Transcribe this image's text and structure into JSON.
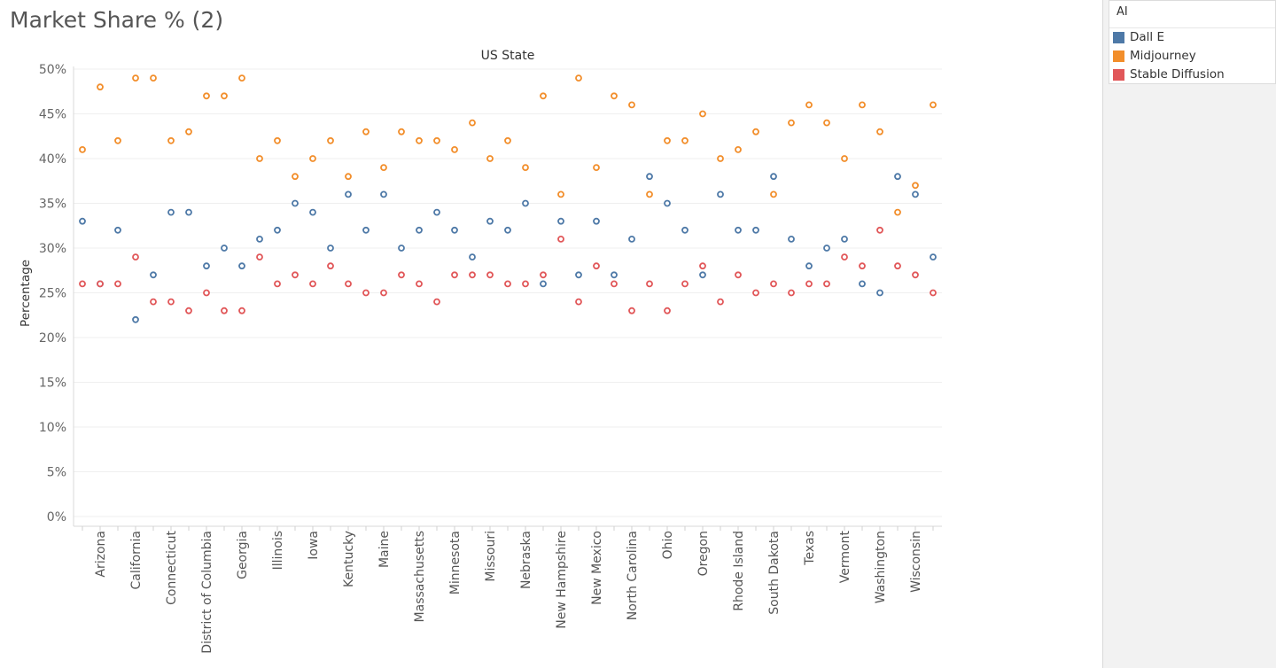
{
  "page": {
    "title": "Market Share % (2)"
  },
  "legend": {
    "title": "AI",
    "items": [
      {
        "name": "Dall E",
        "color": "#4e79a7"
      },
      {
        "name": "Midjourney",
        "color": "#f28e2b"
      },
      {
        "name": "Stable Diffusion",
        "color": "#e15759"
      }
    ]
  },
  "chart_data": {
    "type": "scatter",
    "title": "US State",
    "xlabel": "",
    "ylabel": "Percentage",
    "ylim": [
      0,
      50
    ],
    "yticks": [
      "0%",
      "5%",
      "10%",
      "15%",
      "20%",
      "25%",
      "30%",
      "35%",
      "40%",
      "45%",
      "50%"
    ],
    "grid": true,
    "legend_position": "top-right",
    "categories": [
      "",
      "Arizona",
      "",
      "California",
      "",
      "Connecticut",
      "",
      "District of Columbia",
      "",
      "Georgia",
      "",
      "Illinois",
      "",
      "Iowa",
      "",
      "Kentucky",
      "",
      "Maine",
      "",
      "Massachusetts",
      "",
      "Minnesota",
      "",
      "Missouri",
      "",
      "Nebraska",
      "",
      "New Hampshire",
      "",
      "New Mexico",
      "",
      "North Carolina",
      "",
      "Ohio",
      "",
      "Oregon",
      "",
      "Rhode Island",
      "",
      "South Dakota",
      "",
      "Texas",
      "",
      "Vermont",
      "",
      "Washington",
      "",
      "Wisconsin",
      ""
    ],
    "series": [
      {
        "name": "Dall E",
        "color": "#4e79a7",
        "values": [
          33,
          26,
          32,
          22,
          27,
          34,
          34,
          28,
          30,
          28,
          31,
          32,
          35,
          34,
          30,
          36,
          32,
          36,
          30,
          32,
          34,
          32,
          29,
          33,
          32,
          35,
          26,
          33,
          27,
          33,
          27,
          31,
          38,
          35,
          32,
          27,
          36,
          32,
          32,
          38,
          31,
          28,
          30,
          31,
          26,
          25,
          38,
          36,
          29
        ]
      },
      {
        "name": "Midjourney",
        "color": "#f28e2b",
        "values": [
          41,
          48,
          42,
          49,
          49,
          42,
          43,
          47,
          47,
          49,
          40,
          42,
          38,
          40,
          42,
          38,
          43,
          39,
          43,
          42,
          42,
          41,
          44,
          40,
          42,
          39,
          47,
          36,
          49,
          39,
          47,
          46,
          36,
          42,
          42,
          45,
          40,
          41,
          43,
          36,
          44,
          46,
          44,
          40,
          46,
          43,
          34,
          37,
          46
        ]
      },
      {
        "name": "Stable Diffusion",
        "color": "#e15759",
        "values": [
          26,
          26,
          26,
          29,
          24,
          24,
          23,
          25,
          23,
          23,
          29,
          26,
          27,
          26,
          28,
          26,
          25,
          25,
          27,
          26,
          24,
          27,
          27,
          27,
          26,
          26,
          27,
          31,
          24,
          28,
          26,
          23,
          26,
          23,
          26,
          28,
          24,
          27,
          25,
          26,
          25,
          26,
          26,
          29,
          28,
          32,
          28,
          27,
          25
        ]
      }
    ]
  }
}
